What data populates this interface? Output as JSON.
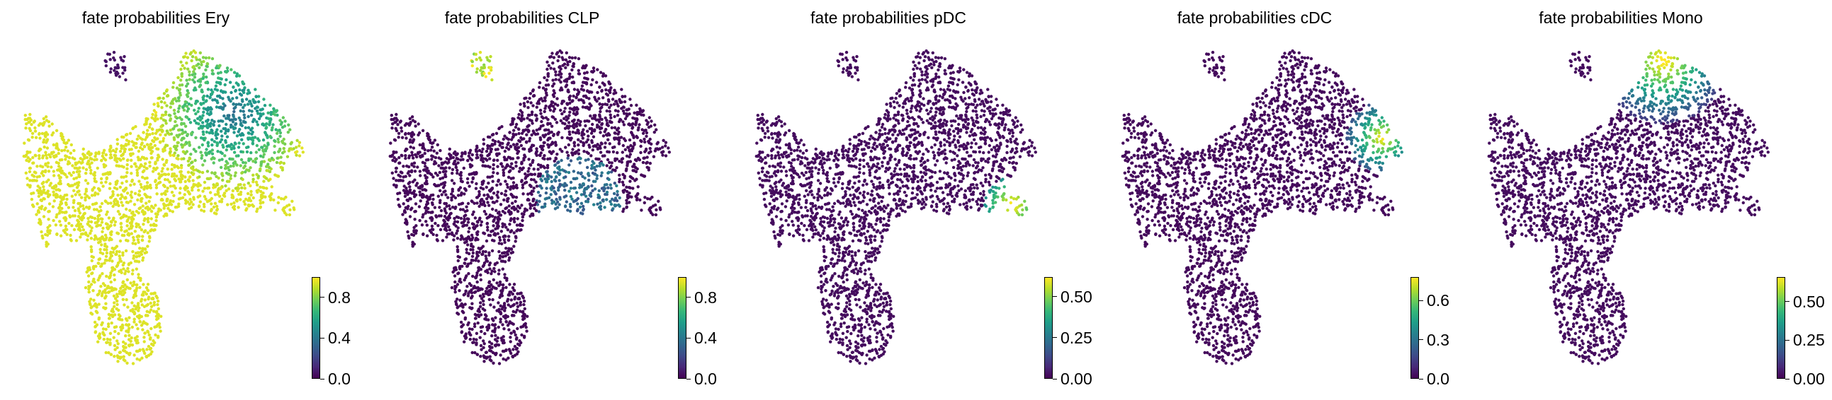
{
  "panels": [
    {
      "title": "fate probabilities Ery",
      "fate": "Ery",
      "vmax": 1.0,
      "ticks": [
        "0.0",
        "0.4",
        "0.8"
      ],
      "tick_values": [
        0.0,
        0.4,
        0.8
      ]
    },
    {
      "title": "fate probabilities CLP",
      "fate": "CLP",
      "vmax": 1.0,
      "ticks": [
        "0.0",
        "0.4",
        "0.8"
      ],
      "tick_values": [
        0.0,
        0.4,
        0.8
      ]
    },
    {
      "title": "fate probabilities pDC",
      "fate": "pDC",
      "vmax": 0.62,
      "ticks": [
        "0.00",
        "0.25",
        "0.50"
      ],
      "tick_values": [
        0.0,
        0.25,
        0.5
      ]
    },
    {
      "title": "fate probabilities cDC",
      "fate": "cDC",
      "vmax": 0.78,
      "ticks": [
        "0.0",
        "0.3",
        "0.6"
      ],
      "tick_values": [
        0.0,
        0.3,
        0.6
      ]
    },
    {
      "title": "fate probabilities Mono",
      "fate": "Mono",
      "vmax": 0.66,
      "ticks": [
        "0.00",
        "0.25",
        "0.50"
      ],
      "tick_values": [
        0.0,
        0.25,
        0.5
      ]
    }
  ],
  "chart_data": [
    {
      "type": "scatter",
      "title": "fate probabilities Ery",
      "colormap": "viridis",
      "colorbar_range": [
        0.0,
        1.0
      ],
      "colorbar_ticks": [
        0.0,
        0.4,
        0.8
      ],
      "high_region": "most cells (left lobe, central stem, bottom)",
      "low_region": "top-left loop"
    },
    {
      "type": "scatter",
      "title": "fate probabilities CLP",
      "colormap": "viridis",
      "colorbar_range": [
        0.0,
        1.0
      ],
      "colorbar_ticks": [
        0.0,
        0.4,
        0.8
      ],
      "high_region": "top-left loop",
      "low_region": "rest of embedding"
    },
    {
      "type": "scatter",
      "title": "fate probabilities pDC",
      "colormap": "viridis",
      "colorbar_range": [
        0.0,
        0.62
      ],
      "colorbar_ticks": [
        0.0,
        0.25,
        0.5
      ],
      "high_region": "lower right tip",
      "low_region": "rest of embedding"
    },
    {
      "type": "scatter",
      "title": "fate probabilities cDC",
      "colormap": "viridis",
      "colorbar_range": [
        0.0,
        0.78
      ],
      "colorbar_ticks": [
        0.0,
        0.3,
        0.6
      ],
      "high_region": "right edge cluster",
      "low_region": "rest of embedding"
    },
    {
      "type": "scatter",
      "title": "fate probabilities Mono",
      "colormap": "viridis",
      "colorbar_range": [
        0.0,
        0.66
      ],
      "colorbar_ticks": [
        0.0,
        0.25,
        0.5
      ],
      "high_region": "top of upper lobe",
      "low_region": "rest of embedding"
    }
  ]
}
